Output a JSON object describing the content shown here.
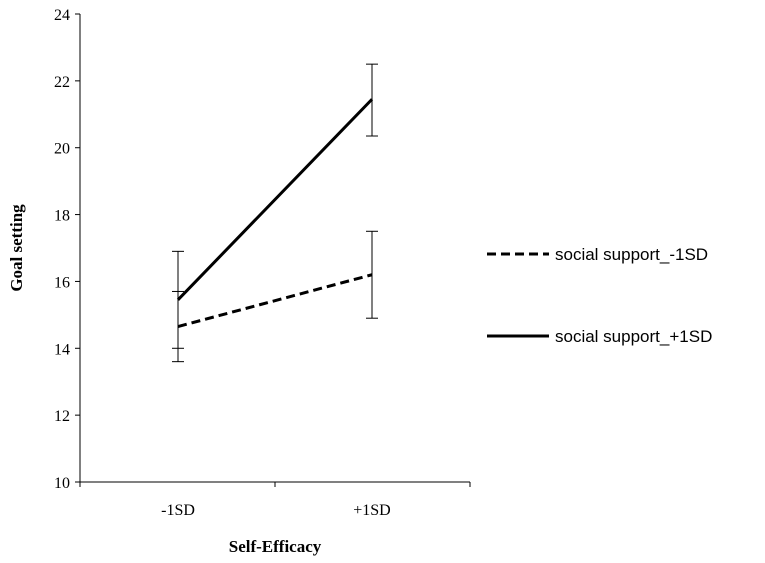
{
  "chart_data": {
    "type": "line",
    "title": "",
    "xlabel": "Self-Efficacy",
    "ylabel": "Goal setting",
    "categories": [
      "-1SD",
      "+1SD"
    ],
    "ylim": [
      10,
      24
    ],
    "yticks": [
      "10",
      "12",
      "14",
      "16",
      "18",
      "20",
      "22",
      "24"
    ],
    "grid": false,
    "legend_position": "right",
    "series": [
      {
        "name": "social support_-1SD",
        "style": "dashed",
        "color": "#000000",
        "values": [
          14.65,
          16.2
        ],
        "error_low": [
          13.6,
          14.9
        ],
        "error_high": [
          15.7,
          17.5
        ]
      },
      {
        "name": "social support_+1SD",
        "style": "solid",
        "color": "#000000",
        "values": [
          15.45,
          21.45
        ],
        "error_low": [
          14.0,
          20.35
        ],
        "error_high": [
          16.9,
          22.5
        ]
      }
    ]
  }
}
